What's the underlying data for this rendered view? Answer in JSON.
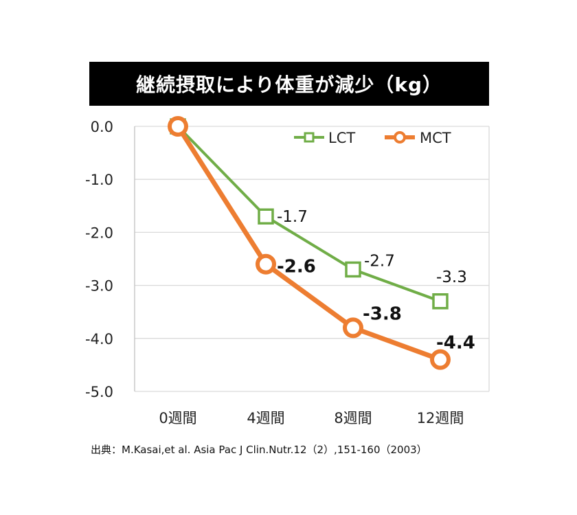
{
  "chart_data": {
    "type": "line",
    "title": "継続摂取により体重が減少（kg）",
    "categories": [
      "0週間",
      "4週間",
      "8週間",
      "12週間"
    ],
    "series": [
      {
        "name": "LCT",
        "values": [
          0,
          -1.7,
          -2.7,
          -3.3
        ],
        "color": "#70ad47",
        "marker": "square",
        "labels": [
          "",
          "-1.7",
          "-2.7",
          "-3.3"
        ],
        "label_bold": false
      },
      {
        "name": "MCT",
        "values": [
          0,
          -2.6,
          -3.8,
          -4.4
        ],
        "color": "#ed7d31",
        "marker": "circle",
        "labels": [
          "",
          "-2.6",
          "-3.8",
          "-4.4"
        ],
        "label_bold": true
      }
    ],
    "ylim": [
      -5.0,
      0.0
    ],
    "yticks": [
      "0.0",
      "-1.0",
      "-2.0",
      "-3.0",
      "-4.0",
      "-5.0"
    ],
    "grid": true,
    "legend_position": "top-right",
    "source": "出典：M.Kasai,et al. Asia Pac J Clin.Nutr.12（2）,151-160（2003）"
  }
}
